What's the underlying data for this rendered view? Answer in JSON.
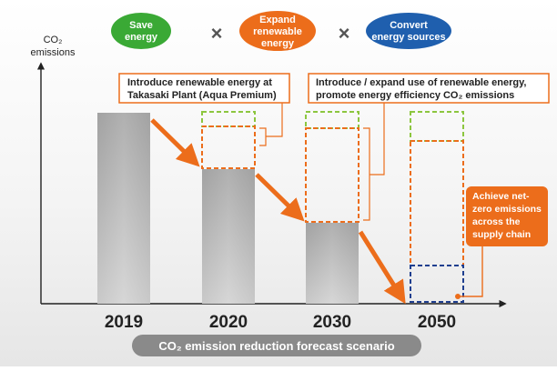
{
  "pills": [
    {
      "line1": "Save",
      "line2": "energy",
      "line3": "",
      "color": "#3aa935"
    },
    {
      "line1": "Expand",
      "line2": "renewable",
      "line3": "energy",
      "color": "#ec6d1b"
    },
    {
      "line1": "Convert",
      "line2": "energy sources",
      "line3": "",
      "color": "#1f5fae"
    }
  ],
  "operators": [
    "×",
    "×"
  ],
  "axis": {
    "ylabel_line1": "CO₂",
    "ylabel_line2": "emissions"
  },
  "years": [
    "2019",
    "2020",
    "2030",
    "2050"
  ],
  "callouts": {
    "c1_line1": "Introduce renewable energy at",
    "c1_line2": "Takasaki Plant (Aqua Premium)",
    "c2_line1": "Introduce / expand use of renewable energy,",
    "c2_line2": "promote energy efficiency CO₂ emissions",
    "c3_line1": "Achieve net-",
    "c3_line2": "zero emissions",
    "c3_line3": "across the",
    "c3_line4": "supply chain"
  },
  "banner": "CO₂ emission reduction forecast scenario",
  "colors": {
    "orange": "#ec6d1b",
    "green": "#8cc63f",
    "blue": "#1f3f8f",
    "bar": "#b3b3b3"
  }
}
